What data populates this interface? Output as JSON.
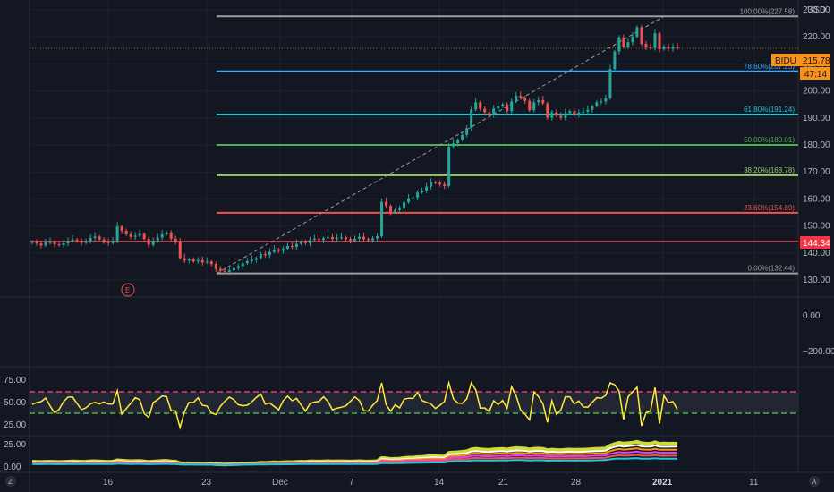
{
  "currency": "USD",
  "ticker": "BIDU",
  "colors": {
    "background": "#131722",
    "up": "#26a69a",
    "down": "#ef5350",
    "rsi_line": "#ffeb3b",
    "badge_orange": "#f7931a",
    "badge_red": "#f23645"
  },
  "price_panel": {
    "y_ticks": [
      "230.00",
      "220.00",
      "210.00",
      "200.00",
      "190.00",
      "180.00",
      "170.00",
      "160.00",
      "150.00",
      "140.00",
      "130.00"
    ],
    "y_tick_values": [
      230,
      220,
      210,
      200,
      190,
      180,
      170,
      160,
      150,
      140,
      130
    ],
    "last_price": "215.78",
    "last_price_value": 215.78,
    "countdown": "47:14",
    "hline_label": "144.34",
    "hline_value": 144.34,
    "earnings_marker": "E"
  },
  "fib_levels": [
    {
      "label": "100.00%(227.58)",
      "value": 227.58,
      "color": "#9e9e9e"
    },
    {
      "label": "78.60%(207.23)",
      "value": 207.23,
      "color": "#42a5f5"
    },
    {
      "label": "61.80%(191.24)",
      "value": 191.24,
      "color": "#26c6da"
    },
    {
      "label": "50.00%(180.01)",
      "value": 180.01,
      "color": "#4caf50"
    },
    {
      "label": "38.20%(168.78)",
      "value": 168.78,
      "color": "#9ccc65"
    },
    {
      "label": "23.60%(154.89)",
      "value": 154.89,
      "color": "#ef5350"
    },
    {
      "label": "0.00%(132.44)",
      "value": 132.44,
      "color": "#9e9e9e"
    }
  ],
  "oscillator_panel": {
    "y_ticks": [
      "0.00",
      "−200.00"
    ],
    "y_tick_values": [
      0,
      -200
    ]
  },
  "rsi_panel": {
    "y_ticks": [
      "75.00",
      "50.00",
      "25.00"
    ],
    "y_tick_values": [
      75,
      50,
      25
    ],
    "upper_band": 62,
    "lower_band": 38
  },
  "volume_panel": {
    "y_ticks": [
      "25.00",
      "0.00"
    ],
    "y_tick_values": [
      25,
      0
    ]
  },
  "x_axis": {
    "labels": [
      "16",
      "23",
      "Dec",
      "7",
      "14",
      "21",
      "28",
      "2021",
      "11"
    ],
    "bold_label": "2021",
    "left_button": "Z",
    "right_button": "A"
  },
  "chart_data": {
    "type": "candlestick",
    "symbol": "BIDU",
    "series": [
      {
        "name": "BIDU",
        "close": [
          144.2,
          143.5,
          142.8,
          143.9,
          144.1,
          143.2,
          142.9,
          143.6,
          144.4,
          145.0,
          144.6,
          143.8,
          144.3,
          145.6,
          146.1,
          145.0,
          144.2,
          143.7,
          144.5,
          149.8,
          148.2,
          146.9,
          146.0,
          146.4,
          147.1,
          145.2,
          143.0,
          144.6,
          145.8,
          146.9,
          147.6,
          145.3,
          144.2,
          138.1,
          137.2,
          137.6,
          136.9,
          137.3,
          136.5,
          136.8,
          135.9,
          134.1,
          133.4,
          133.0,
          133.6,
          134.4,
          135.1,
          136.2,
          137.0,
          137.5,
          138.1,
          139.6,
          139.2,
          140.4,
          141.3,
          140.8,
          141.6,
          142.6,
          142.2,
          143.4,
          144.1,
          143.7,
          144.9,
          145.3,
          144.8,
          145.5,
          145.9,
          145.2,
          145.6,
          145.8,
          145.1,
          144.6,
          145.3,
          146.0,
          145.1,
          144.7,
          145.4,
          146.2,
          158.9,
          157.4,
          155.1,
          155.9,
          156.4,
          158.8,
          160.2,
          160.5,
          162.4,
          163.1,
          164.6,
          166.2,
          166.0,
          165.4,
          164.8,
          179.4,
          180.6,
          181.9,
          183.7,
          186.2,
          193.1,
          195.8,
          193.4,
          192.1,
          191.0,
          193.5,
          194.3,
          195.0,
          192.5,
          196.1,
          198.2,
          197.6,
          196.3,
          192.8,
          195.8,
          196.6,
          195.4,
          190.1,
          192.1,
          190.8,
          190.1,
          191.8,
          192.5,
          191.3,
          192.0,
          192.3,
          193.0,
          194.4,
          195.8,
          196.1,
          197.3,
          208.1,
          214.6,
          219.8,
          216.4,
          218.0,
          220.1,
          223.6,
          217.4,
          216.1,
          215.8,
          221.3,
          215.4,
          216.4,
          215.6,
          216.2,
          215.78
        ]
      }
    ],
    "y_axis_range": [
      128,
      232
    ],
    "horizontal_line": 144.34,
    "fib_retracement": {
      "from": 132.44,
      "to": 227.58
    },
    "rsi": {
      "upper_band": 62,
      "lower_band": 38,
      "y_axis_range": [
        0,
        80
      ]
    },
    "oscillator": {
      "y_axis_range": [
        -280,
        60
      ]
    },
    "legend": "none",
    "grid": true
  }
}
